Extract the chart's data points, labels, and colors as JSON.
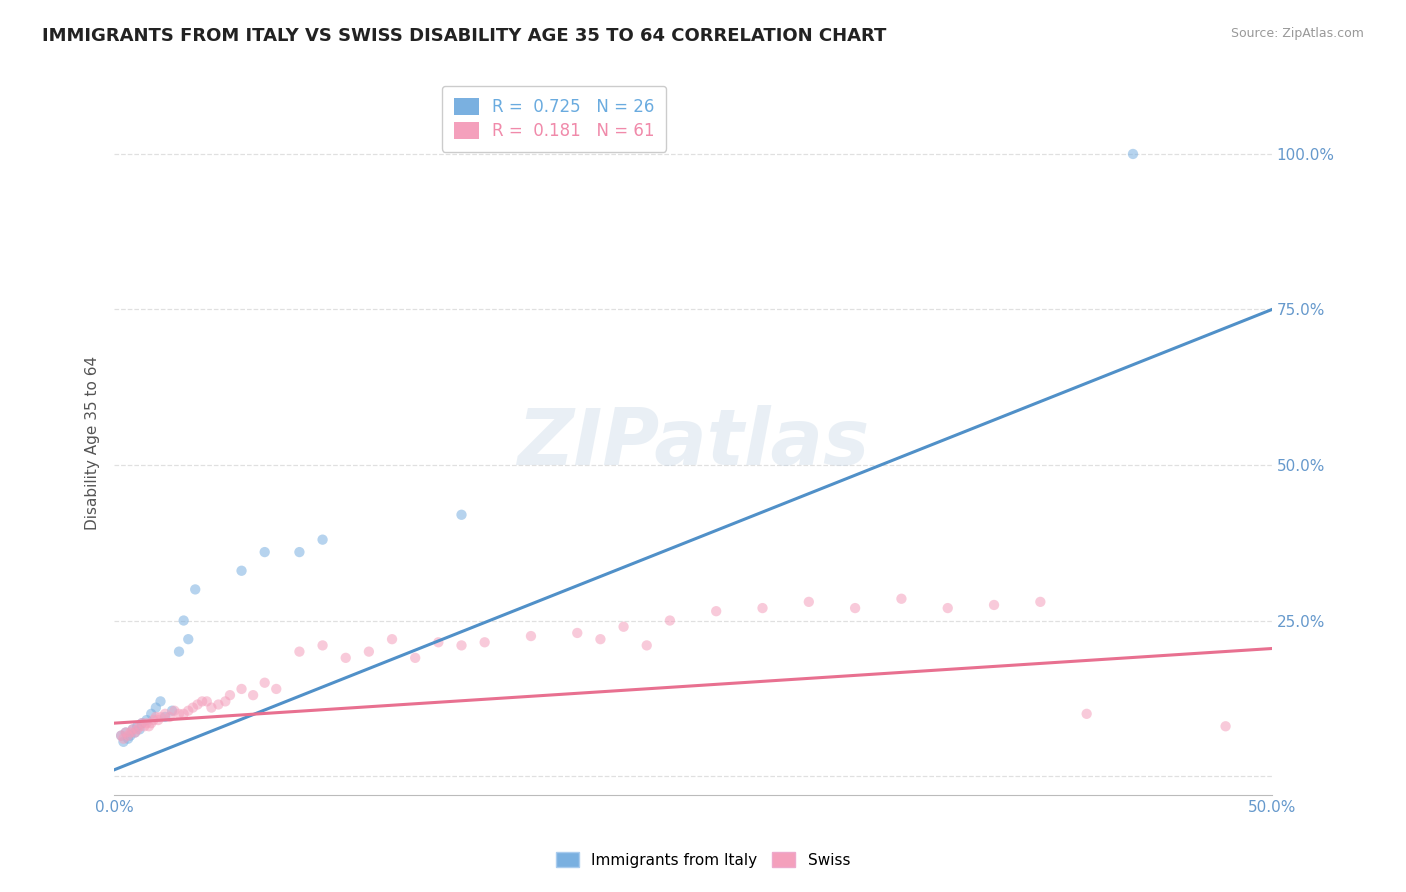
{
  "title": "IMMIGRANTS FROM ITALY VS SWISS DISABILITY AGE 35 TO 64 CORRELATION CHART",
  "source": "Source: ZipAtlas.com",
  "ylabel": "Disability Age 35 to 64",
  "xlim": [
    0.0,
    0.5
  ],
  "ylim": [
    -0.03,
    1.1
  ],
  "xticks": [
    0.0,
    0.1,
    0.2,
    0.3,
    0.4,
    0.5
  ],
  "xticklabels": [
    "0.0%",
    "",
    "",
    "",
    "",
    "50.0%"
  ],
  "yticks": [
    0.0,
    0.25,
    0.5,
    0.75,
    1.0
  ],
  "yticklabels": [
    "",
    "25.0%",
    "50.0%",
    "75.0%",
    "100.0%"
  ],
  "legend_entries": [
    {
      "label": "R =  0.725   N = 26",
      "color": "#6aabdf"
    },
    {
      "label": "R =  0.181   N = 61",
      "color": "#f08aaa"
    }
  ],
  "watermark": "ZIPatlas",
  "blue_scatter_x": [
    0.003,
    0.004,
    0.005,
    0.006,
    0.007,
    0.008,
    0.009,
    0.01,
    0.011,
    0.012,
    0.014,
    0.016,
    0.018,
    0.02,
    0.022,
    0.025,
    0.028,
    0.03,
    0.032,
    0.035,
    0.055,
    0.065,
    0.08,
    0.09,
    0.15,
    0.44
  ],
  "blue_scatter_y": [
    0.065,
    0.055,
    0.07,
    0.06,
    0.065,
    0.075,
    0.07,
    0.08,
    0.075,
    0.085,
    0.09,
    0.1,
    0.11,
    0.12,
    0.095,
    0.105,
    0.2,
    0.25,
    0.22,
    0.3,
    0.33,
    0.36,
    0.36,
    0.38,
    0.42,
    1.0
  ],
  "pink_scatter_x": [
    0.003,
    0.004,
    0.005,
    0.006,
    0.007,
    0.008,
    0.009,
    0.01,
    0.011,
    0.012,
    0.013,
    0.014,
    0.015,
    0.016,
    0.017,
    0.018,
    0.019,
    0.02,
    0.022,
    0.024,
    0.026,
    0.028,
    0.03,
    0.032,
    0.034,
    0.036,
    0.038,
    0.04,
    0.042,
    0.045,
    0.048,
    0.05,
    0.055,
    0.06,
    0.065,
    0.07,
    0.08,
    0.09,
    0.1,
    0.11,
    0.12,
    0.13,
    0.14,
    0.15,
    0.16,
    0.18,
    0.2,
    0.21,
    0.22,
    0.23,
    0.24,
    0.26,
    0.28,
    0.3,
    0.32,
    0.34,
    0.36,
    0.38,
    0.4,
    0.42,
    0.48
  ],
  "pink_scatter_y": [
    0.065,
    0.06,
    0.07,
    0.065,
    0.07,
    0.075,
    0.07,
    0.075,
    0.08,
    0.085,
    0.08,
    0.085,
    0.08,
    0.085,
    0.09,
    0.095,
    0.09,
    0.095,
    0.1,
    0.095,
    0.105,
    0.1,
    0.1,
    0.105,
    0.11,
    0.115,
    0.12,
    0.12,
    0.11,
    0.115,
    0.12,
    0.13,
    0.14,
    0.13,
    0.15,
    0.14,
    0.2,
    0.21,
    0.19,
    0.2,
    0.22,
    0.19,
    0.215,
    0.21,
    0.215,
    0.225,
    0.23,
    0.22,
    0.24,
    0.21,
    0.25,
    0.265,
    0.27,
    0.28,
    0.27,
    0.285,
    0.27,
    0.275,
    0.28,
    0.1,
    0.08
  ],
  "blue_line_x": [
    0.0,
    0.5
  ],
  "blue_line_y": [
    0.01,
    0.75
  ],
  "pink_line_x": [
    0.0,
    0.5
  ],
  "pink_line_y": [
    0.085,
    0.205
  ],
  "blue_color": "#7ab0e0",
  "pink_color": "#f4a0bc",
  "blue_line_color": "#5090c8",
  "pink_line_color": "#e87090",
  "grid_color": "#e0e0e0",
  "background_color": "#ffffff",
  "title_fontsize": 13,
  "axis_label_fontsize": 11,
  "tick_fontsize": 11,
  "scatter_size": 55,
  "scatter_alpha": 0.55,
  "line_width": 2.2
}
